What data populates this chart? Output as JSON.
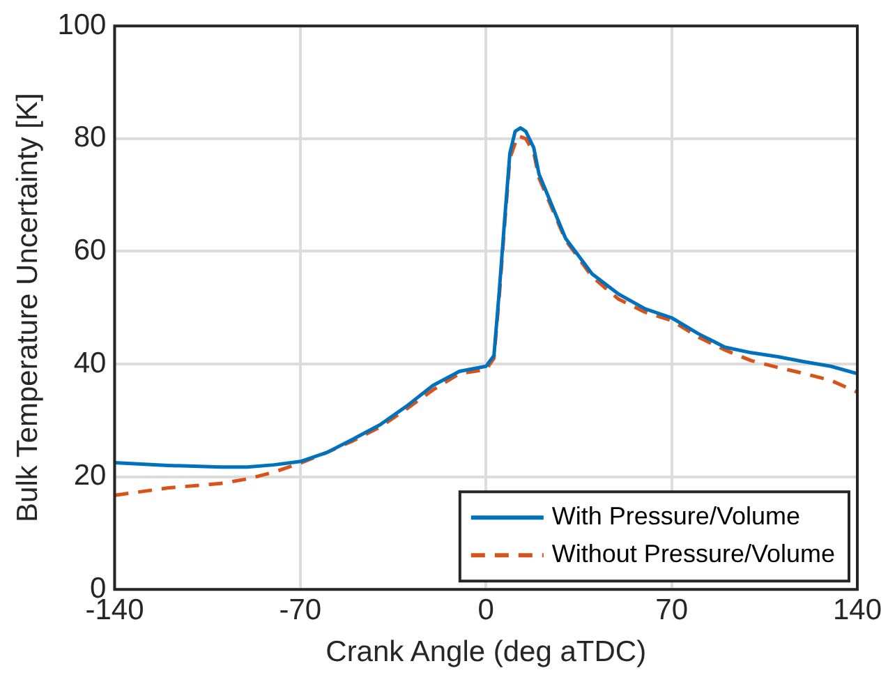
{
  "chart_data": {
    "type": "line",
    "xlabel": "Crank Angle (deg aTDC)",
    "ylabel": "Bulk Temperature Uncertainty [K]",
    "xlim": [
      -140,
      140
    ],
    "xticks": [
      -140,
      -70,
      0,
      70,
      140
    ],
    "ylim": [
      0,
      100
    ],
    "yticks": [
      0,
      20,
      40,
      60,
      80,
      100
    ],
    "grid": true,
    "legend": "bottom right",
    "marker": "none",
    "series": [
      {
        "name": "With Pressure/Volume",
        "color": "#0072bd",
        "line_style": "solid",
        "x": [
          -140,
          -120,
          -100,
          -90,
          -80,
          -70,
          -60,
          -50,
          -40,
          -30,
          -20,
          -10,
          0,
          3,
          5,
          7,
          9,
          11,
          13,
          15,
          18,
          20,
          25,
          30,
          40,
          50,
          60,
          70,
          80,
          90,
          100,
          110,
          120,
          130,
          140
        ],
        "values": [
          22.5,
          22,
          21.7,
          21.7,
          22.1,
          22.7,
          24.3,
          26.7,
          29.2,
          32.5,
          36.2,
          38.7,
          39.6,
          41.5,
          52.9,
          65.4,
          77.4,
          81.3,
          81.9,
          81.3,
          78.4,
          73.7,
          68,
          62.3,
          56,
          52.4,
          49.8,
          48.2,
          45.4,
          43,
          42,
          41.3,
          40.4,
          39.6,
          38.3
        ]
      },
      {
        "name": "Without Pressure/Volume",
        "color": "#d95319",
        "line_style": "dashed",
        "x": [
          -140,
          -120,
          -100,
          -90,
          -80,
          -70,
          -60,
          -50,
          -40,
          -30,
          -20,
          -10,
          0,
          3,
          5,
          7,
          9,
          12,
          15,
          18,
          20,
          25,
          30,
          40,
          50,
          60,
          70,
          80,
          90,
          100,
          110,
          120,
          130,
          140
        ],
        "values": [
          16.7,
          18,
          18.8,
          19.6,
          20.8,
          22.4,
          24.3,
          26.4,
          28.8,
          32,
          35.4,
          38.3,
          39,
          41,
          52,
          64.5,
          76.5,
          80.5,
          80,
          77.5,
          73,
          67.5,
          62,
          55.5,
          51.5,
          49.2,
          47.7,
          44.8,
          42.5,
          40.6,
          39.4,
          38.3,
          37.1,
          35
        ]
      }
    ]
  }
}
